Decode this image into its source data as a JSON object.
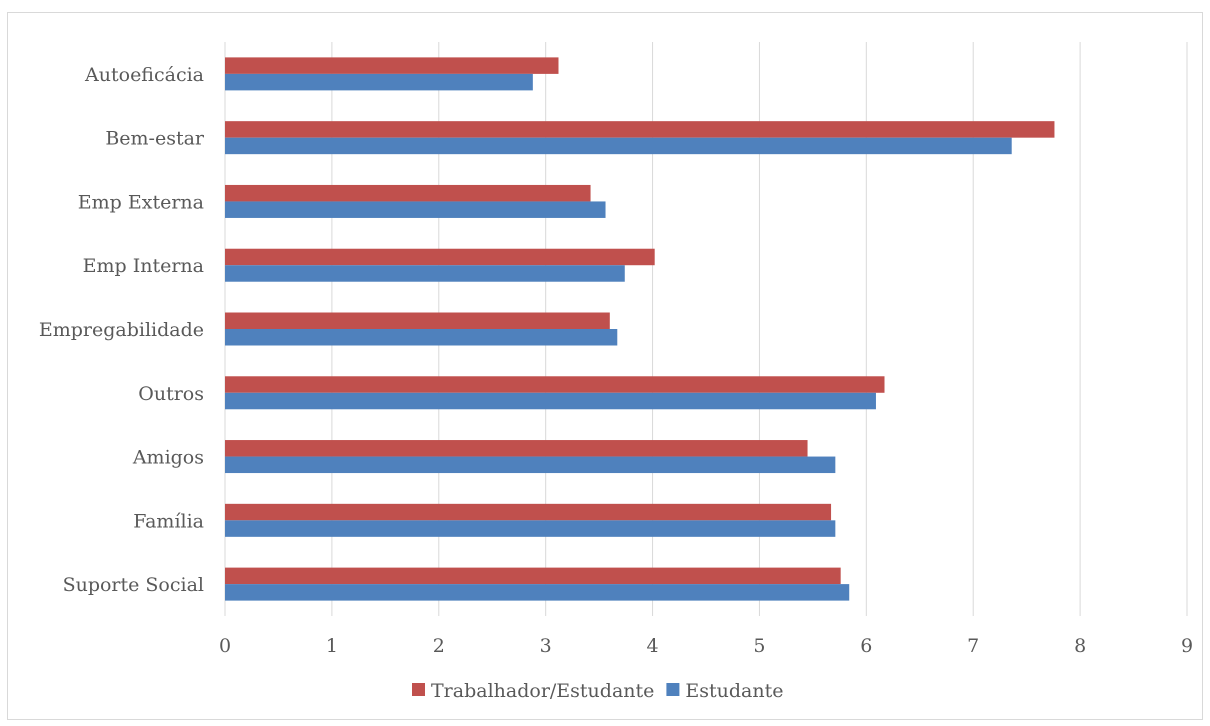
{
  "chart_data": {
    "type": "bar",
    "orientation": "horizontal",
    "categories": [
      "Autoeficácia",
      "Bem-estar",
      "Emp Externa",
      "Emp Interna",
      "Empregabilidade",
      "Outros",
      "Amigos",
      "Família",
      "Suporte Social"
    ],
    "series": [
      {
        "name": "Trabalhador/Estudante",
        "color": "#c0504d",
        "values": [
          3.12,
          7.76,
          3.42,
          4.02,
          3.6,
          6.17,
          5.45,
          5.67,
          5.76
        ]
      },
      {
        "name": "Estudante",
        "color": "#4f81bd",
        "values": [
          2.88,
          7.36,
          3.56,
          3.74,
          3.67,
          6.09,
          5.71,
          5.71,
          5.84
        ]
      }
    ],
    "xlim": [
      0,
      9
    ],
    "xticks": [
      "0",
      "1",
      "2",
      "3",
      "4",
      "5",
      "6",
      "7",
      "8",
      "9"
    ],
    "grid": "vertical",
    "legend": "bottom",
    "title": "",
    "xlabel": "",
    "ylabel": ""
  }
}
